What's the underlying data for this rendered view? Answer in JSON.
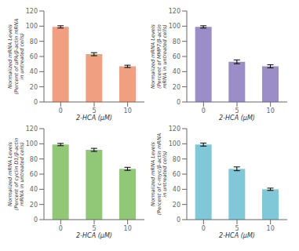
{
  "chart_data": [
    {
      "type": "bar",
      "ylabel": "Normalized mRNA Levels\n(Percent of uPA/β-actin mRNA\nin untreated cells)",
      "xlabel": "2-HCA (μM)",
      "categories": [
        "0",
        "5",
        "10"
      ],
      "values": [
        99,
        63,
        47
      ],
      "errors": [
        1.5,
        2.0,
        1.5
      ],
      "color": "#F0A080",
      "ylim": [
        0,
        120
      ],
      "yticks": [
        0,
        20,
        40,
        60,
        80,
        100,
        120
      ]
    },
    {
      "type": "bar",
      "ylabel": "Normalized mRNA Levels\n(Percent of MMP7/β-actin\nmRNA in untreated cells)",
      "xlabel": "2-HCA (μM)",
      "categories": [
        "0",
        "5",
        "10"
      ],
      "values": [
        99,
        53,
        47
      ],
      "errors": [
        1.5,
        2.5,
        2.0
      ],
      "color": "#9B8DC8",
      "ylim": [
        0,
        120
      ],
      "yticks": [
        0,
        20,
        40,
        60,
        80,
        100,
        120
      ]
    },
    {
      "type": "bar",
      "ylabel": "Normalized mRNA Levels\n(Percent of cyclin D1/β-actin\nmRNA in untreated cells)",
      "xlabel": "2-HCA (μM)",
      "categories": [
        "0",
        "5",
        "10"
      ],
      "values": [
        99,
        92,
        67
      ],
      "errors": [
        1.5,
        2.0,
        2.0
      ],
      "color": "#90C878",
      "ylim": [
        0,
        120
      ],
      "yticks": [
        0,
        20,
        40,
        60,
        80,
        100,
        120
      ]
    },
    {
      "type": "bar",
      "ylabel": "Normalized mRNA Levels\n(Percent of c-myc/β-actin mRNA\nin untreated cells)",
      "xlabel": "2-HCA (μM)",
      "categories": [
        "0",
        "5",
        "10"
      ],
      "values": [
        99,
        67,
        40
      ],
      "errors": [
        2.0,
        2.5,
        1.5
      ],
      "color": "#80C8D8",
      "ylim": [
        0,
        120
      ],
      "yticks": [
        0,
        20,
        40,
        60,
        80,
        100,
        120
      ]
    }
  ]
}
